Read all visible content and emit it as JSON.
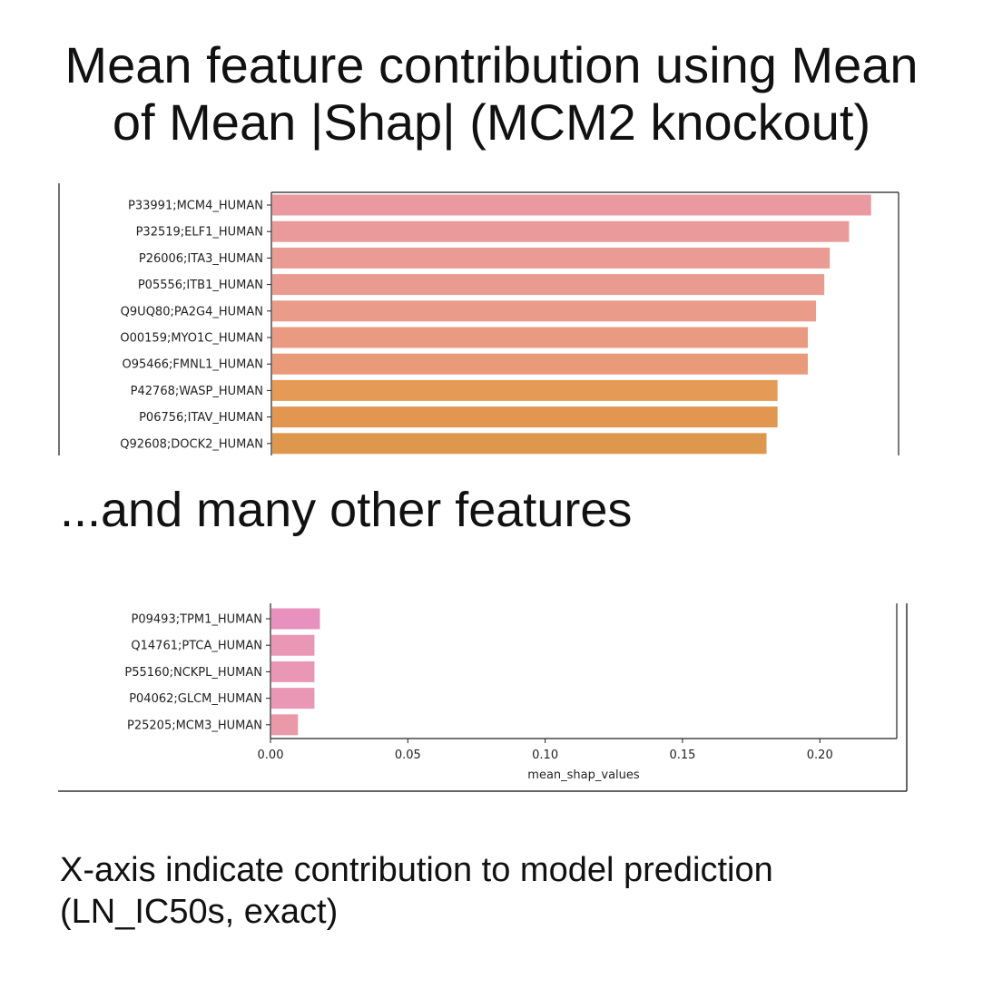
{
  "title_lines": [
    "Mean feature contribution using Mean",
    "of Mean |Shap| (MCM2 knockout)"
  ],
  "separator_text": "...and many other features",
  "caption_lines": [
    "X-axis indicate contribution to model prediction",
    "(LN_IC50s, exact)"
  ],
  "chart_data": [
    {
      "type": "bar",
      "orientation": "horizontal",
      "categories": [
        "P33991;MCM4_HUMAN",
        "P32519;ELF1_HUMAN",
        "P26006;ITA3_HUMAN",
        "P05556;ITB1_HUMAN",
        "Q9UQ80;PA2G4_HUMAN",
        "O00159;MYO1C_HUMAN",
        "O95466;FMNL1_HUMAN",
        "P42768;WASP_HUMAN",
        "P06756;ITAV_HUMAN",
        "Q92608;DOCK2_HUMAN"
      ],
      "values": [
        0.218,
        0.21,
        0.203,
        0.201,
        0.198,
        0.195,
        0.195,
        0.184,
        0.184,
        0.18
      ],
      "colors": [
        "#ea99a0",
        "#ea9a9a",
        "#ea9b93",
        "#ea9b8f",
        "#ea9b8a",
        "#e99a80",
        "#e99a78",
        "#e59a55",
        "#e29650",
        "#de984e"
      ],
      "xlim": [
        0,
        0.228
      ]
    },
    {
      "type": "bar",
      "orientation": "horizontal",
      "categories": [
        "P09493;TPM1_HUMAN",
        "Q14761;PTCA_HUMAN",
        "P55160;NCKPL_HUMAN",
        "P04062;GLCM_HUMAN",
        "P25205;MCM3_HUMAN"
      ],
      "values": [
        0.018,
        0.016,
        0.016,
        0.016,
        0.01
      ],
      "colors": [
        "#e991be",
        "#ea97b5",
        "#ea97b5",
        "#ea97b5",
        "#ea99a8"
      ],
      "xlim": [
        0,
        0.228
      ],
      "xticks": [
        0.0,
        0.05,
        0.1,
        0.15,
        0.2
      ],
      "xtick_labels": [
        "0.00",
        "0.05",
        "0.10",
        "0.15",
        "0.20"
      ],
      "xlabel": "mean_shap_values"
    }
  ]
}
